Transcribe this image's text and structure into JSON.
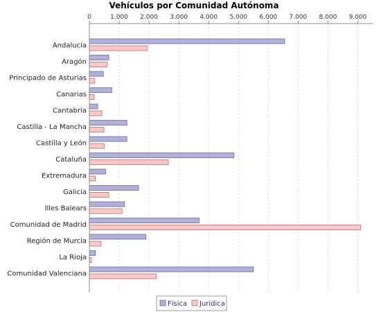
{
  "chart_data": {
    "type": "bar",
    "orientation": "horizontal",
    "title": "Vehículos por Comunidad Autónoma",
    "xlabel": "",
    "ylabel": "",
    "xlim": [
      0,
      9500
    ],
    "x_ticks": [
      0,
      1000,
      2000,
      3000,
      4000,
      5000,
      6000,
      7000,
      8000,
      9000
    ],
    "x_tick_labels": [
      "0",
      "1.000",
      "2.000",
      "3.000",
      "4.000",
      "5.000",
      "6.000",
      "7.000",
      "8.000",
      "9.000"
    ],
    "x_axis_position": "top",
    "grid": true,
    "legend_position": "bottom",
    "categories": [
      "Andalucía",
      "Aragón",
      "Principado de Asturias",
      "Canarias",
      "Cantabria",
      "Castilla - La Mancha",
      "Castilla y León",
      "Cataluña",
      "Extremadura",
      "Galicia",
      "Illes Balears",
      "Comunidad de Madrid",
      "Región de Murcia",
      "La Rioja",
      "Comunidad Valenciana"
    ],
    "series": [
      {
        "name": "Física",
        "color": "#b0b0d8",
        "values": [
          6550,
          650,
          470,
          750,
          280,
          1260,
          1260,
          4850,
          550,
          1650,
          1180,
          3680,
          1900,
          200,
          5500
        ]
      },
      {
        "name": "Jurídica",
        "color": "#ffc8c8",
        "values": [
          1950,
          600,
          180,
          160,
          420,
          490,
          500,
          2650,
          200,
          650,
          1100,
          9100,
          390,
          70,
          2250
        ]
      }
    ]
  }
}
